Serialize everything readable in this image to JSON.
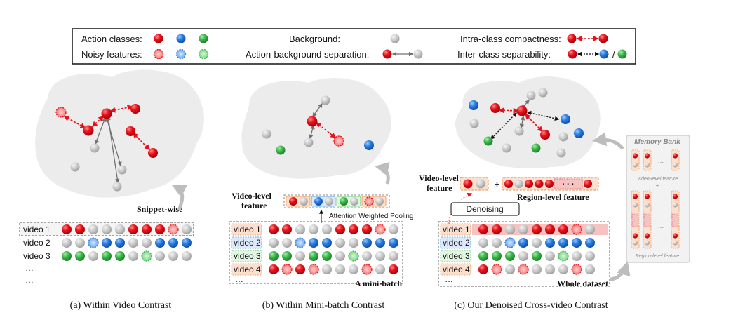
{
  "legend": {
    "action_classes": "Action classes:",
    "noisy_features": "Noisy features:",
    "background": "Background:",
    "action_background_separation": "Action-background separation:",
    "intra_class_compactness": "Intra-class compactness:",
    "inter_class_separability": "Inter-class separability:",
    "slash": "/"
  },
  "panel_a": {
    "caption": "(a) Within Video Contrast",
    "snippet_label": "Snippet-wise",
    "rows": [
      {
        "label": "video 1",
        "cells": [
          "R",
          "R",
          "G",
          "G",
          "G",
          "R",
          "R",
          "R",
          "RN",
          "G"
        ]
      },
      {
        "label": "video 2",
        "cells": [
          "G",
          "G",
          "BN",
          "B",
          "B",
          "G",
          "G",
          "B",
          "B",
          "B"
        ]
      },
      {
        "label": "video 3",
        "cells": [
          "Gr",
          "Gr",
          "G",
          "Gr",
          "Gr",
          "G",
          "GrN",
          "G",
          "G",
          "G"
        ]
      }
    ],
    "ellipsis": [
      "…",
      "…"
    ]
  },
  "panel_b": {
    "caption": "(b) Within Mini-batch Contrast",
    "video_level_feature": [
      "Video-level",
      "feature"
    ],
    "attention_label": "Attention Weighted Pooling",
    "minibatch_label": "A mini-batch",
    "rows": [
      {
        "label": "video 1",
        "cells": [
          "R",
          "R",
          "G",
          "G",
          "G",
          "R",
          "R",
          "R",
          "RN",
          "G"
        ]
      },
      {
        "label": "video 2",
        "cells": [
          "G",
          "G",
          "BN",
          "B",
          "B",
          "G",
          "G",
          "B",
          "B",
          "B"
        ]
      },
      {
        "label": "video 3",
        "cells": [
          "Gr",
          "Gr",
          "G",
          "Gr",
          "Gr",
          "G",
          "GrN",
          "G",
          "G",
          "G"
        ]
      },
      {
        "label": "video 4",
        "cells": [
          "R",
          "RN",
          "R",
          "RN",
          "G",
          "G",
          "G",
          "RN",
          "G",
          "R"
        ]
      }
    ],
    "ellipsis": "…"
  },
  "panel_c": {
    "caption": "(c) Our Denoised Cross-video Contrast",
    "video_level_feature": [
      "Video-level",
      "feature"
    ],
    "plus": "+",
    "region_level_feature": "Region-level feature",
    "region_dots": "· · ·",
    "denoising": "Denoising",
    "whole_dataset": "Whole dataset",
    "rows": [
      {
        "label": "video 1",
        "cells": [
          "R",
          "R",
          "G",
          "G",
          "R",
          "R",
          "R",
          "RN",
          "G"
        ]
      },
      {
        "label": "video 2",
        "cells": [
          "G",
          "G",
          "BN",
          "B",
          "G",
          "B",
          "B",
          "B",
          "B"
        ]
      },
      {
        "label": "video 3",
        "cells": [
          "Gr",
          "Gr",
          "Gr",
          "G",
          "Gr",
          "G",
          "GrN",
          "G",
          "G"
        ]
      },
      {
        "label": "video 4",
        "cells": [
          "R",
          "RN",
          "G",
          "RN",
          "G",
          "G",
          "G",
          "RN",
          "G"
        ]
      }
    ],
    "ellipsis": "…"
  },
  "memory_bank": {
    "title": "Memory Bank",
    "video_level": "Video-level feature",
    "plus": "+",
    "region_level": "Region-level feature",
    "dots": "…"
  },
  "colors": {
    "R": "#e8101a",
    "B": "#2a7de0",
    "Gr": "#3cb94a",
    "G": "#c9c9c9",
    "cloud": "#ececec",
    "orange": "#f0a060",
    "pink": "#f6c2c2"
  }
}
